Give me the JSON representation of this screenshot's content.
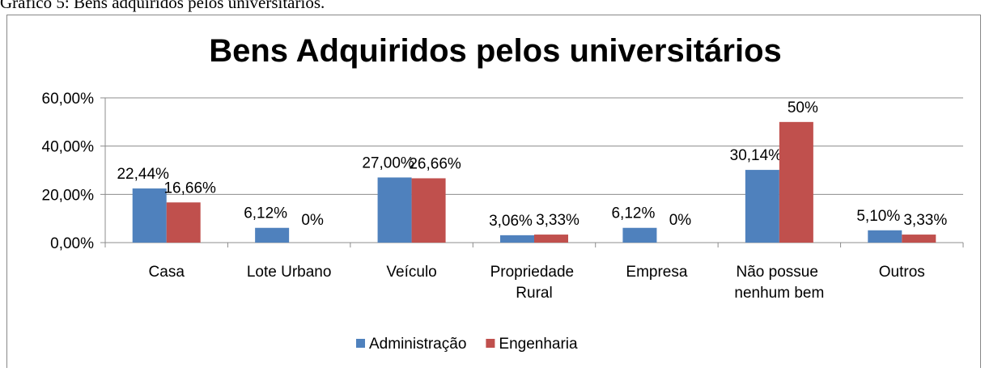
{
  "caption": "Gráfico 5: Bens adquiridos pelos universitários.",
  "chart_data": {
    "type": "bar",
    "title": "Bens Adquiridos pelos universitários",
    "categories": [
      "Casa",
      "Lote Urbano",
      "Veículo",
      "Propriedade Rural",
      "Empresa",
      "Não possue nenhum bem",
      "Outros"
    ],
    "series": [
      {
        "name": "Administração",
        "color": "#4f81bd",
        "values": [
          22.44,
          6.12,
          27.0,
          3.06,
          6.12,
          30.14,
          5.1
        ],
        "value_labels": [
          "22,44%",
          "6,12%",
          "27,00%",
          "3,06%",
          "6,12%",
          "30,14%",
          "5,10%"
        ]
      },
      {
        "name": "Engenharia",
        "color": "#c0504d",
        "values": [
          16.66,
          0,
          26.66,
          3.33,
          0,
          50,
          3.33
        ],
        "value_labels": [
          "16,66%",
          "0%",
          "26,66%",
          "3,33%",
          "0%",
          "50%",
          "3,33%"
        ]
      }
    ],
    "ylim": [
      0,
      60
    ],
    "yticks": [
      {
        "value": 0,
        "label": "0,00%"
      },
      {
        "value": 20,
        "label": "20,00%"
      },
      {
        "value": 40,
        "label": "40,00%"
      },
      {
        "value": 60,
        "label": "60,00%"
      }
    ],
    "grid": true,
    "legend": "bottom"
  }
}
